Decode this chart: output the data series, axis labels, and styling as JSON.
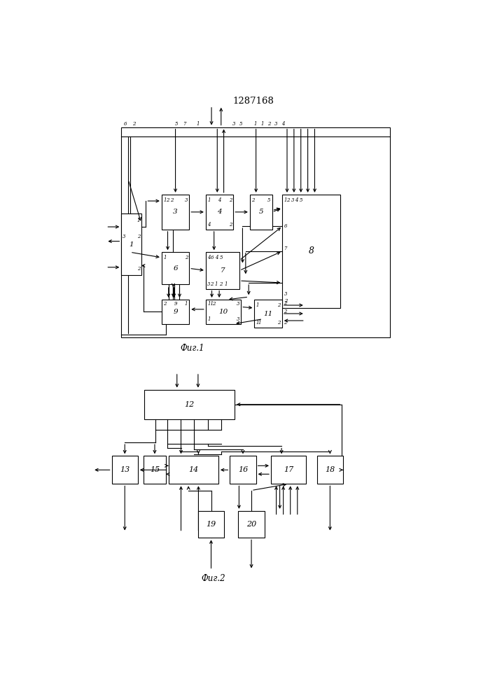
{
  "title": "1287168",
  "fig1_label": "Фиг.1",
  "fig2_label": "Фиг.2",
  "lc": "#000000",
  "lw": 0.8,
  "fig1": {
    "outer": [
      0.155,
      0.53,
      0.7,
      0.39
    ],
    "b1": [
      0.155,
      0.645,
      0.052,
      0.115
    ],
    "b3": [
      0.26,
      0.73,
      0.072,
      0.065
    ],
    "b4": [
      0.375,
      0.73,
      0.072,
      0.065
    ],
    "b5": [
      0.49,
      0.73,
      0.058,
      0.065
    ],
    "b6": [
      0.26,
      0.628,
      0.072,
      0.06
    ],
    "b7": [
      0.375,
      0.62,
      0.088,
      0.068
    ],
    "b8": [
      0.575,
      0.585,
      0.15,
      0.21
    ],
    "b9": [
      0.26,
      0.555,
      0.072,
      0.045
    ],
    "b10": [
      0.375,
      0.555,
      0.092,
      0.045
    ],
    "b11": [
      0.502,
      0.548,
      0.072,
      0.052
    ]
  },
  "fig2": {
    "b12": [
      0.215,
      0.378,
      0.235,
      0.055
    ],
    "b13": [
      0.13,
      0.258,
      0.068,
      0.052
    ],
    "b15": [
      0.213,
      0.258,
      0.058,
      0.052
    ],
    "b14": [
      0.278,
      0.258,
      0.13,
      0.052
    ],
    "b16": [
      0.438,
      0.258,
      0.068,
      0.052
    ],
    "b17": [
      0.545,
      0.258,
      0.092,
      0.052
    ],
    "b18": [
      0.665,
      0.258,
      0.068,
      0.052
    ],
    "b19": [
      0.355,
      0.158,
      0.068,
      0.05
    ],
    "b20": [
      0.46,
      0.158,
      0.068,
      0.05
    ]
  }
}
